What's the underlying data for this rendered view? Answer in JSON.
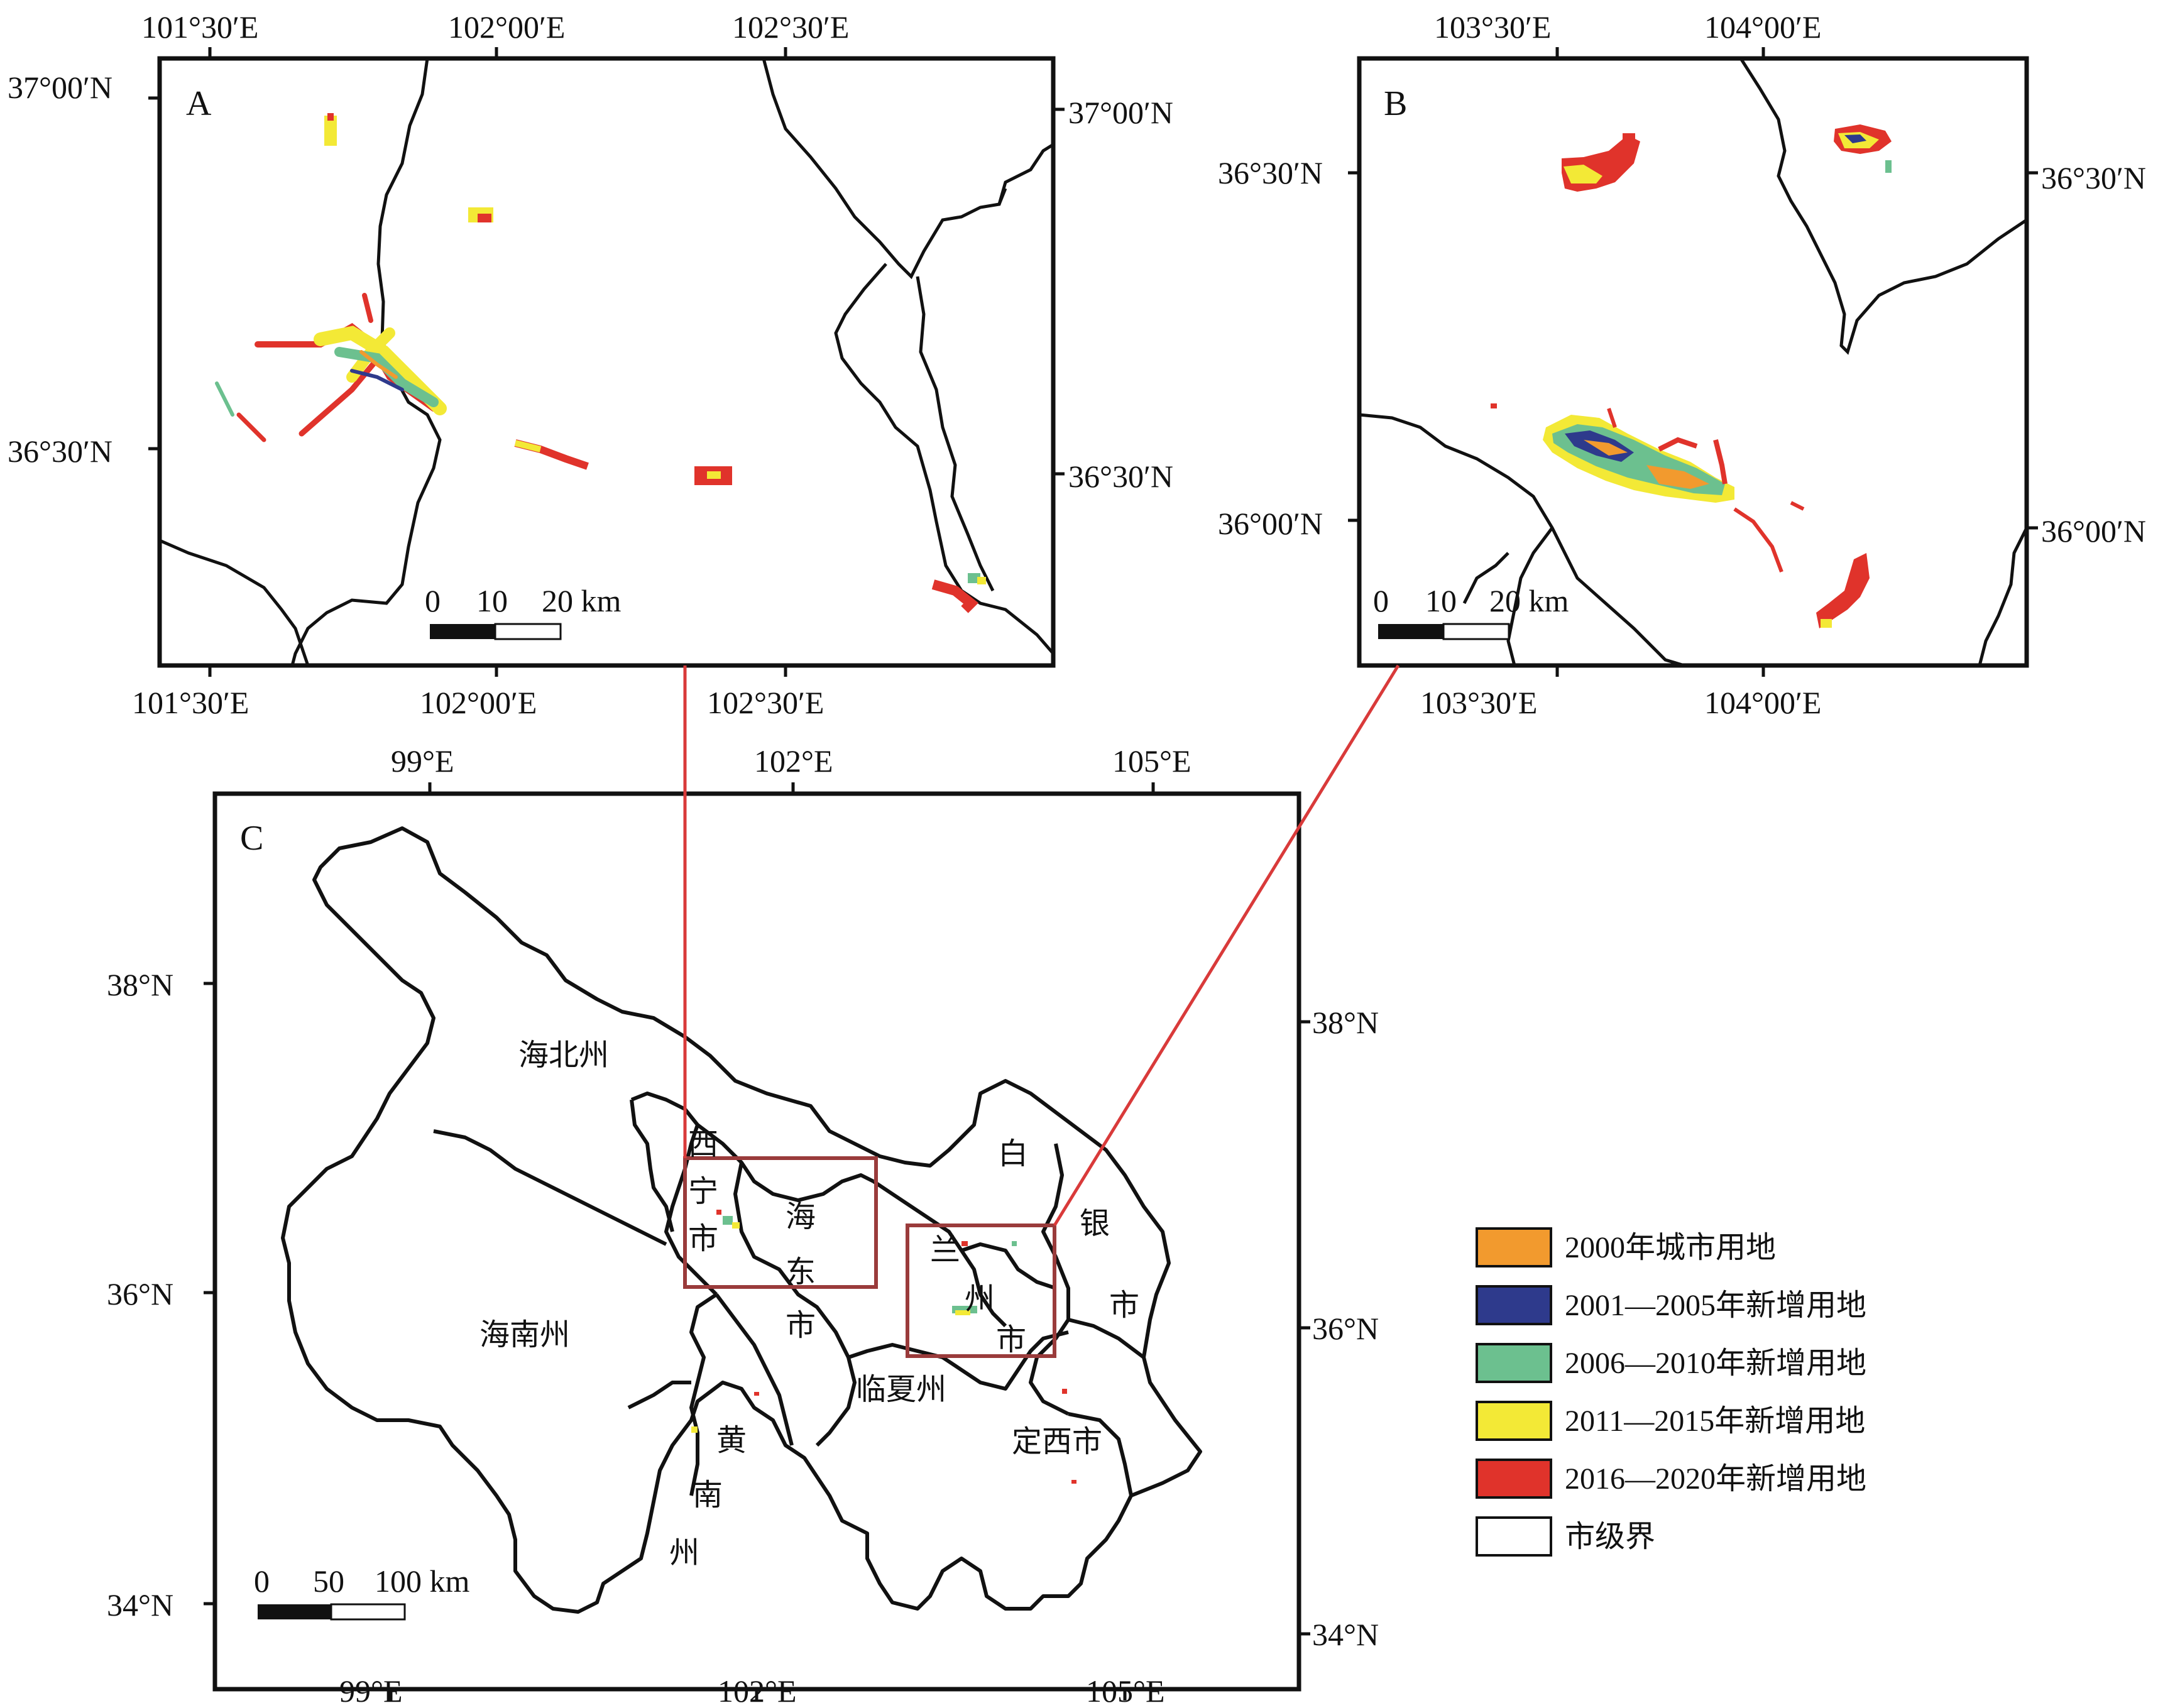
{
  "panels": {
    "A": {
      "letter": "A",
      "lon_ticks_top": [
        "101°30′E",
        "102°00′E",
        "102°30′E"
      ],
      "lon_ticks_bottom": [
        "101°30′E",
        "102°00′E",
        "102°30′E"
      ],
      "lat_ticks_left": [
        "37°00′N",
        "36°30′N"
      ],
      "lat_ticks_right": [
        "37°00′N",
        "36°30′N"
      ],
      "scale_labels": [
        "0",
        "10",
        "20 km"
      ]
    },
    "B": {
      "letter": "B",
      "lon_ticks_top": [
        "103°30′E",
        "104°00′E"
      ],
      "lon_ticks_bottom": [
        "103°30′E",
        "104°00′E"
      ],
      "lat_ticks_left": [
        "36°30′N",
        "36°00′N"
      ],
      "lat_ticks_right": [
        "36°30′N",
        "36°00′N"
      ],
      "scale_labels": [
        "0",
        "10",
        "20 km"
      ]
    },
    "C": {
      "letter": "C",
      "lon_ticks_top": [
        "99°E",
        "102°E",
        "105°E"
      ],
      "lon_ticks_bottom": [
        "99°E",
        "102°E",
        "105°E"
      ],
      "lat_ticks_left": [
        "38°N",
        "36°N",
        "34°N"
      ],
      "lat_ticks_right": [
        "38°N",
        "36°N",
        "34°N"
      ],
      "scale_labels": [
        "0",
        "50",
        "100 km"
      ],
      "regions": {
        "haibei": "海北州",
        "hainan": "海南州",
        "xining": [
          "西",
          "宁",
          "市"
        ],
        "haidong": [
          "海",
          "东",
          "市"
        ],
        "huangnan": [
          "黄",
          "南",
          "州"
        ],
        "linxia": "临夏州",
        "lanzhou": [
          "兰",
          "州",
          "市"
        ],
        "baiyin": [
          "白",
          "银",
          "市"
        ],
        "dingxi": "定西市"
      }
    }
  },
  "legend": [
    {
      "label": "2000年城市用地",
      "color": "#f29a2e"
    },
    {
      "label": "2001—2005年新增用地",
      "color": "#2e3a8c"
    },
    {
      "label": "2006—2010年新增用地",
      "color": "#6cc08f"
    },
    {
      "label": "2011—2015年新增用地",
      "color": "#f3e936"
    },
    {
      "label": "2016—2020年新增用地",
      "color": "#e0332b"
    },
    {
      "label": "市级界",
      "color": "#ffffff"
    }
  ],
  "colors": {
    "frame": "#111111",
    "boundary": "#111111",
    "callout": "#d93a3a",
    "inset_box": "#9a3b3b"
  }
}
